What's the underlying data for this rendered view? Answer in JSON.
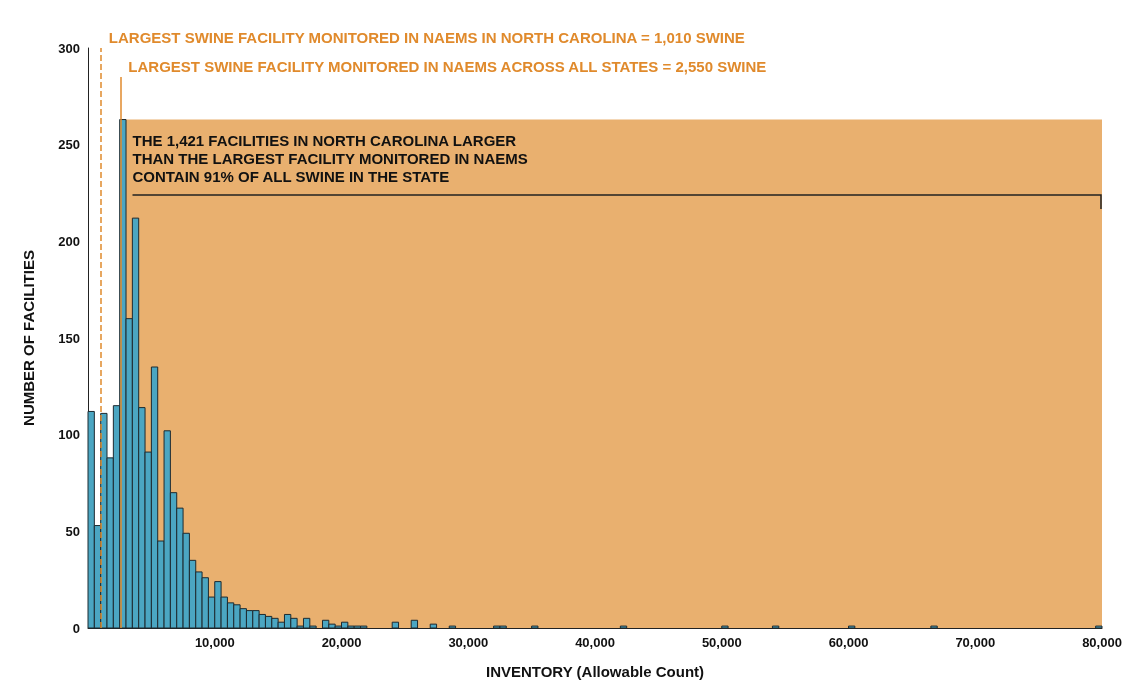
{
  "chart_data": {
    "type": "histogram",
    "xlabel": "INVENTORY (Allowable Count)",
    "ylabel": "NUMBER OF FACILITIES",
    "annotations": [
      "THE 1,421 FACILITIES IN NORTH CAROLINA LARGER\nTHAN THE LARGEST FACILITY MONITORED IN NAEMS\nCONTAIN 91% OF ALL SWINE IN THE STATE"
    ],
    "bins": [
      0,
      500,
      1000,
      1500,
      2000,
      2500,
      3000,
      3500,
      4000,
      4500,
      5000,
      5500,
      6000,
      6500,
      7000,
      7500,
      8000,
      8500,
      9000,
      9500,
      10000,
      10500,
      11000,
      11500,
      12000,
      12500,
      13000,
      13500,
      14000,
      14500,
      15000,
      15500,
      16000,
      16500,
      17000,
      17500,
      18000,
      18500,
      19000,
      19500,
      20000,
      20500,
      21000,
      21500,
      22000,
      22500,
      23000,
      23500,
      24000,
      24500,
      25000,
      25500,
      26000,
      26500,
      27000,
      27500,
      28000,
      28500,
      29000,
      29500,
      30000,
      30500,
      31000,
      31500,
      32000,
      32500,
      33000,
      33500,
      34000,
      34500,
      35000,
      35500,
      36000,
      36500,
      37000,
      37500,
      38000,
      38500,
      39000,
      39500,
      40000,
      40500,
      41000,
      41500,
      42000,
      42500,
      43000,
      43500,
      44000,
      44500,
      45000,
      45500,
      46000,
      46500,
      47000,
      47500,
      48000,
      48500,
      49000,
      49500,
      50000,
      50500,
      51000,
      51500,
      52000,
      52500,
      53000,
      53500,
      54000,
      54500,
      55000,
      55500,
      56000,
      56500,
      57000,
      57500,
      58000,
      58500,
      59000,
      59500,
      60000,
      60500,
      61000,
      61500,
      62000,
      62500,
      63000,
      63500,
      64000,
      64500,
      65000,
      65500,
      66000,
      66500,
      67000,
      67500,
      68000,
      68500,
      69000,
      69500,
      70000,
      70500,
      71000,
      71500,
      72000,
      72500,
      73000,
      73500,
      74000,
      74500,
      75000,
      75500,
      76000,
      76500,
      77000,
      77500,
      78000,
      78500,
      79000,
      79500,
      80000
    ],
    "values": [
      112,
      53,
      111,
      88,
      115,
      263,
      160,
      212,
      114,
      91,
      135,
      45,
      102,
      70,
      62,
      49,
      35,
      29,
      26,
      16,
      24,
      16,
      13,
      12,
      10,
      9,
      9,
      7,
      6,
      5,
      3,
      7,
      5,
      1,
      5,
      1,
      0,
      4,
      2,
      1,
      3,
      1,
      1,
      1,
      0,
      0,
      0,
      0,
      3,
      0,
      0,
      4,
      0,
      0,
      2,
      0,
      0,
      1,
      0,
      0,
      0,
      0,
      0,
      0,
      1,
      1,
      0,
      0,
      0,
      0,
      1,
      0,
      0,
      0,
      0,
      0,
      0,
      0,
      0,
      0,
      0,
      0,
      0,
      0,
      1,
      0,
      0,
      0,
      0,
      0,
      0,
      0,
      0,
      0,
      0,
      0,
      0,
      0,
      0,
      0,
      1,
      0,
      0,
      0,
      0,
      0,
      0,
      0,
      1,
      0,
      0,
      0,
      0,
      0,
      0,
      0,
      0,
      0,
      0,
      0,
      1,
      0,
      0,
      0,
      0,
      0,
      0,
      0,
      0,
      0,
      0,
      0,
      0,
      1,
      0,
      0,
      0,
      0,
      0,
      0,
      0,
      0,
      0,
      0,
      0,
      0,
      0,
      0,
      0,
      0,
      0,
      0,
      0,
      0,
      0,
      0,
      0,
      0,
      0,
      1
    ],
    "color": "#4ba6c2",
    "xlim": [
      0,
      80000
    ],
    "xticks": [
      {
        "value": 10000,
        "label": "10,000"
      },
      {
        "value": 20000,
        "label": "20,000"
      },
      {
        "value": 30000,
        "label": "30,000"
      },
      {
        "value": 40000,
        "label": "40,000"
      },
      {
        "value": 50000,
        "label": "50,000"
      },
      {
        "value": 60000,
        "label": "60,000"
      },
      {
        "value": 70000,
        "label": "70,000"
      },
      {
        "value": 80000,
        "label": "80,000"
      }
    ],
    "ylim": [
      0,
      300
    ],
    "yticks": [
      0,
      50,
      100,
      150,
      200,
      250,
      300
    ],
    "ref_lines": [
      {
        "axis": "x",
        "value": 1010,
        "label": "LARGEST SWINE FACILITY MONITORED IN NAEMS IN NORTH CAROLINA = 1,010 SWINE",
        "color": "#e08a2c",
        "line_style": "dashed"
      },
      {
        "axis": "x",
        "value": 2550,
        "label": "LARGEST SWINE FACILITY MONITORED IN NAEMS ACROSS ALL STATES = 2,550 SWINE",
        "color": "#e08a2c",
        "line_style": "solid"
      }
    ],
    "bands": [
      {
        "axis": "x",
        "from": 2550,
        "to": 80000,
        "color": "#e9b06f"
      }
    ],
    "grid": false
  }
}
